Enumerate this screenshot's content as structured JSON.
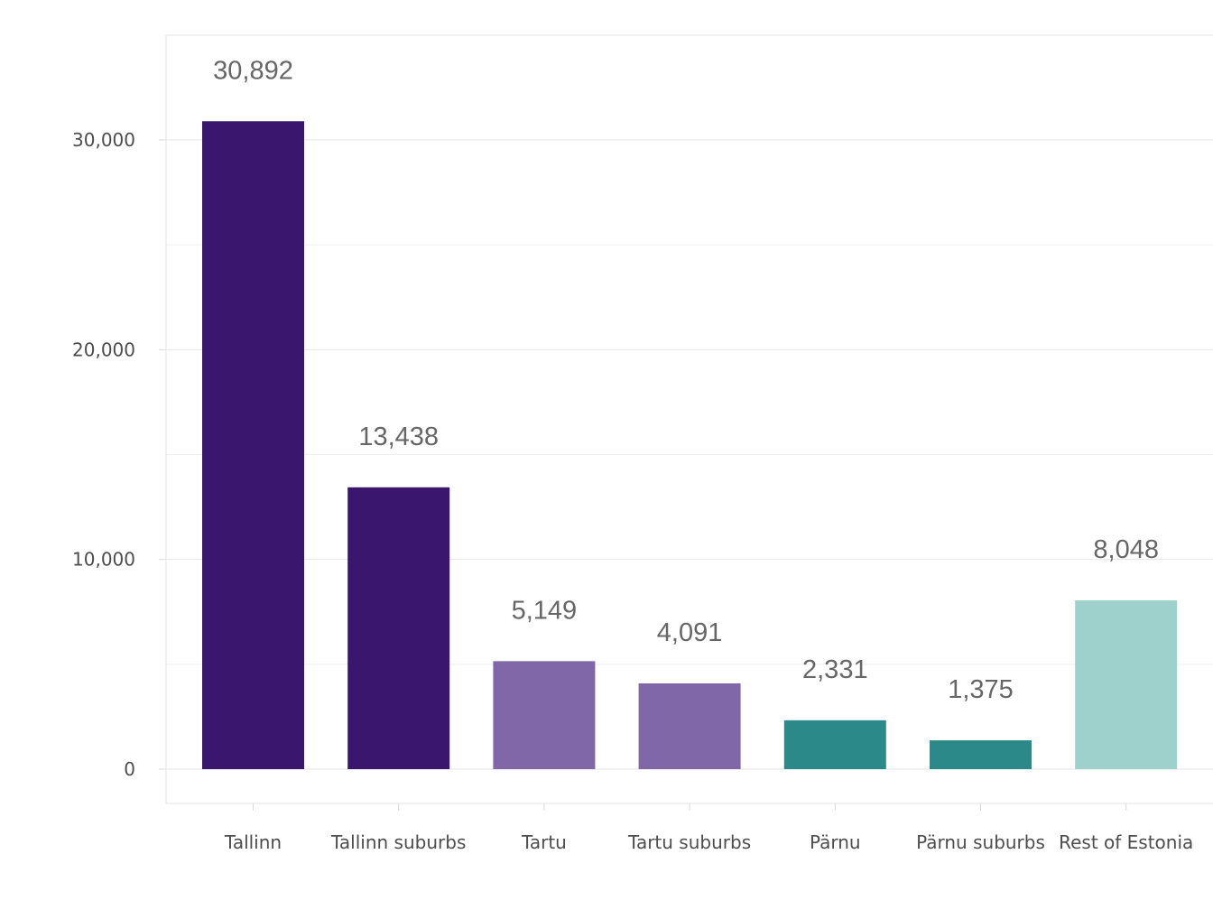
{
  "chart_data": {
    "type": "bar",
    "categories": [
      "Tallinn",
      "Tallinn suburbs",
      "Tartu",
      "Tartu suburbs",
      "Pärnu",
      "Pärnu suburbs",
      "Rest of Estonia"
    ],
    "values": [
      30892,
      13438,
      5149,
      4091,
      2331,
      1375,
      8048
    ],
    "value_labels": [
      "30,892",
      "13,438",
      "5,149",
      "4,091",
      "2,331",
      "1,375",
      "8,048"
    ],
    "bar_colors": [
      "#3a166f",
      "#3a166f",
      "#7f67a8",
      "#7f67a8",
      "#2c898a",
      "#2c898a",
      "#9ed1cb"
    ],
    "title": "",
    "xlabel": "",
    "ylabel": "",
    "ylim": [
      -1600,
      35000
    ],
    "y_ticks": [
      0,
      10000,
      20000,
      30000
    ],
    "y_tick_labels": [
      "0",
      "10,000",
      "20,000",
      "30,000"
    ],
    "y_minor_gridlines": [
      5000,
      15000,
      25000
    ],
    "grid": true,
    "legend": "none"
  }
}
